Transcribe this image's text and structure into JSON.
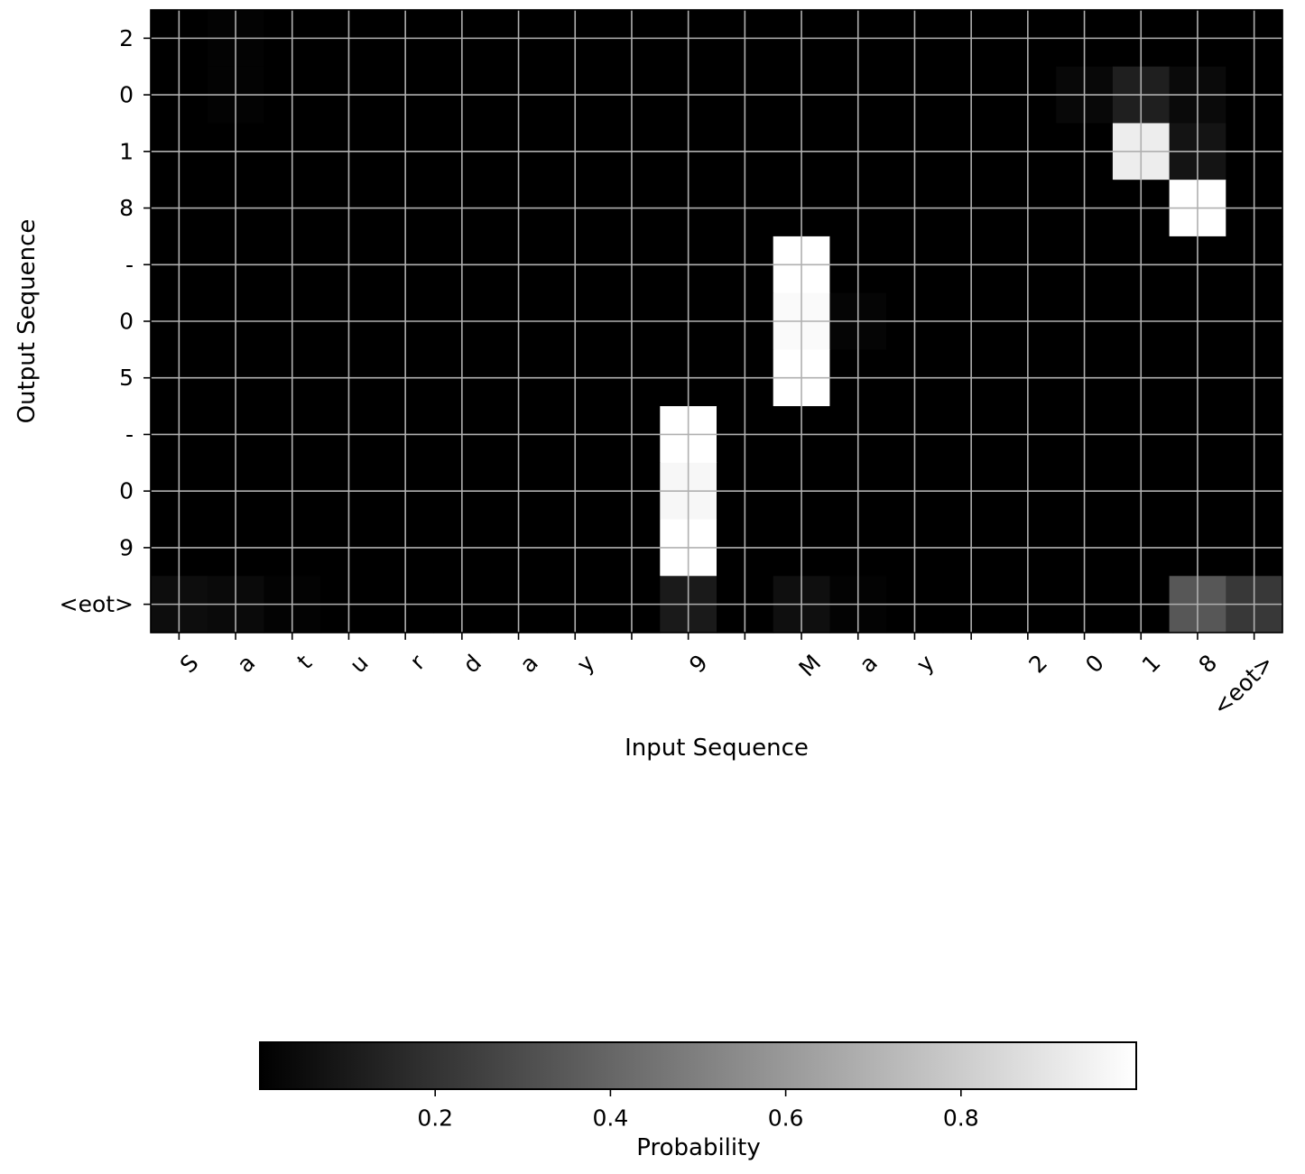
{
  "chart_data": {
    "type": "heatmap",
    "title": "",
    "xlabel": "Input Sequence",
    "ylabel": "Output Sequence",
    "x_tokens": [
      "S",
      "a",
      "t",
      "u",
      "r",
      "d",
      "a",
      "y",
      " ",
      "9",
      " ",
      "M",
      "a",
      "y",
      " ",
      "2",
      "0",
      "1",
      "8",
      "<eot>"
    ],
    "y_tokens": [
      "2",
      "0",
      "1",
      "8",
      "-",
      "0",
      "5",
      "-",
      "0",
      "9",
      "<eot>"
    ],
    "colormap": "gray",
    "grid": true,
    "values": [
      [
        0.0,
        0.01,
        0.0,
        0.0,
        0.0,
        0.0,
        0.0,
        0.0,
        0.0,
        0.0,
        0.0,
        0.0,
        0.0,
        0.0,
        0.0,
        0.0,
        0.0,
        0.0,
        0.0,
        0.0
      ],
      [
        0.0,
        0.01,
        0.0,
        0.0,
        0.0,
        0.0,
        0.0,
        0.0,
        0.0,
        0.0,
        0.0,
        0.0,
        0.0,
        0.0,
        0.0,
        0.0,
        0.03,
        0.12,
        0.04,
        0.0
      ],
      [
        0.0,
        0.0,
        0.0,
        0.0,
        0.0,
        0.0,
        0.0,
        0.0,
        0.0,
        0.0,
        0.0,
        0.0,
        0.0,
        0.0,
        0.0,
        0.0,
        0.0,
        0.93,
        0.08,
        0.0
      ],
      [
        0.0,
        0.0,
        0.0,
        0.0,
        0.0,
        0.0,
        0.0,
        0.0,
        0.0,
        0.0,
        0.0,
        0.0,
        0.0,
        0.0,
        0.0,
        0.0,
        0.0,
        0.0,
        1.0,
        0.0
      ],
      [
        0.0,
        0.0,
        0.0,
        0.0,
        0.0,
        0.0,
        0.0,
        0.0,
        0.0,
        0.0,
        0.0,
        1.0,
        0.0,
        0.0,
        0.0,
        0.0,
        0.0,
        0.0,
        0.0,
        0.0
      ],
      [
        0.0,
        0.0,
        0.0,
        0.0,
        0.0,
        0.0,
        0.0,
        0.0,
        0.0,
        0.0,
        0.0,
        0.98,
        0.02,
        0.0,
        0.0,
        0.0,
        0.0,
        0.0,
        0.0,
        0.0
      ],
      [
        0.0,
        0.0,
        0.0,
        0.0,
        0.0,
        0.0,
        0.0,
        0.0,
        0.0,
        0.0,
        0.0,
        1.0,
        0.0,
        0.0,
        0.0,
        0.0,
        0.0,
        0.0,
        0.0,
        0.0
      ],
      [
        0.0,
        0.0,
        0.0,
        0.0,
        0.0,
        0.0,
        0.0,
        0.0,
        0.0,
        1.0,
        0.0,
        0.0,
        0.0,
        0.0,
        0.0,
        0.0,
        0.0,
        0.0,
        0.0,
        0.0
      ],
      [
        0.0,
        0.0,
        0.0,
        0.0,
        0.0,
        0.0,
        0.0,
        0.0,
        0.0,
        0.97,
        0.0,
        0.0,
        0.0,
        0.0,
        0.0,
        0.0,
        0.0,
        0.0,
        0.0,
        0.0
      ],
      [
        0.0,
        0.0,
        0.0,
        0.0,
        0.0,
        0.0,
        0.0,
        0.0,
        0.0,
        1.0,
        0.0,
        0.0,
        0.0,
        0.0,
        0.0,
        0.0,
        0.0,
        0.0,
        0.0,
        0.0
      ],
      [
        0.05,
        0.04,
        0.01,
        0.0,
        0.0,
        0.0,
        0.0,
        0.0,
        0.0,
        0.1,
        0.0,
        0.06,
        0.01,
        0.0,
        0.0,
        0.0,
        0.0,
        0.0,
        0.34,
        0.22
      ]
    ],
    "colorbar": {
      "label": "Probability",
      "range": [
        0,
        1
      ],
      "ticks": [
        0.2,
        0.4,
        0.6,
        0.8
      ],
      "tick_labels": [
        "0.2",
        "0.4",
        "0.6",
        "0.8"
      ]
    }
  }
}
